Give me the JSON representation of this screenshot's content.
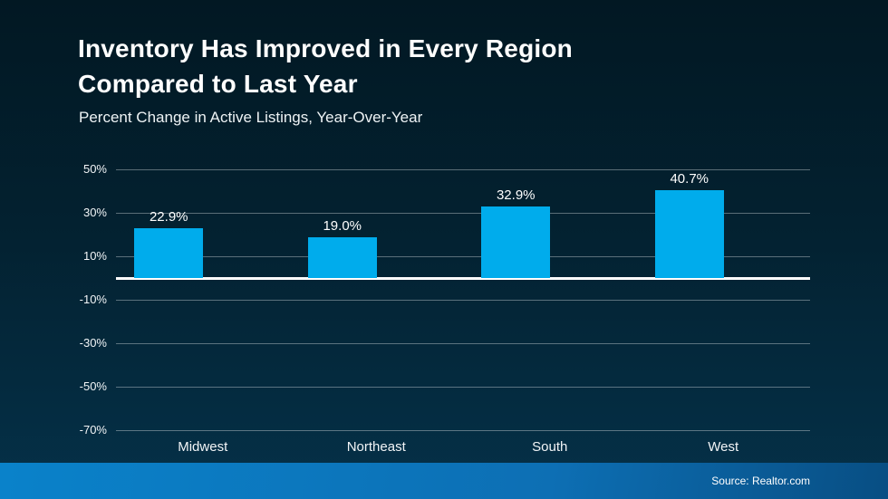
{
  "header": {
    "title_line1": "Inventory Has Improved in Every Region",
    "title_line2": "Compared to Last Year",
    "subtitle": "Percent Change in Active Listings, Year-Over-Year"
  },
  "footer": {
    "source": "Source: Realtor.com"
  },
  "colors": {
    "background_top": "#021823",
    "background_mid": "#032130",
    "background_bottom": "#053149",
    "bar": "#00ACEC",
    "grid_line": "rgba(255,255,255,0.35)",
    "zero_line": "#ffffff",
    "text": "#ffffff",
    "footer_gradient_left": "#0a82ca",
    "footer_gradient_mid": "#0d6fb4",
    "footer_gradient_right": "#084e83"
  },
  "chart_data": {
    "type": "bar",
    "title": "Inventory Has Improved in Every Region Compared to Last Year",
    "subtitle": "Percent Change in Active Listings, Year-Over-Year",
    "categories": [
      "Midwest",
      "Northeast",
      "South",
      "West"
    ],
    "values": [
      22.9,
      19.0,
      32.9,
      40.7
    ],
    "value_labels": [
      "22.9%",
      "19.0%",
      "32.9%",
      "40.7%"
    ],
    "xlabel": "",
    "ylabel": "",
    "ylim": [
      -70,
      50
    ],
    "yticks": [
      50,
      30,
      10,
      -10,
      -30,
      -50,
      -70
    ],
    "ytick_labels": [
      "50%",
      "30%",
      "10%",
      "-10%",
      "-30%",
      "-50%",
      "-70%"
    ],
    "grid": true,
    "legend": false,
    "source": "Source: Realtor.com"
  }
}
